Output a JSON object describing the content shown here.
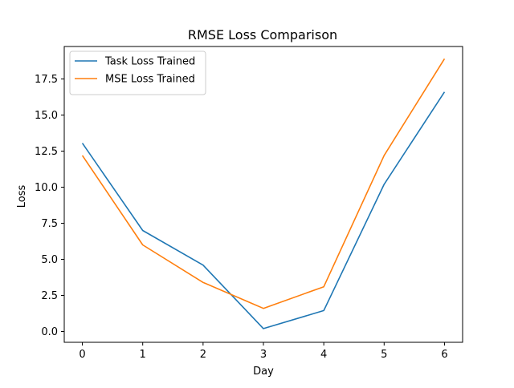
{
  "chart_data": {
    "type": "line",
    "title": "RMSE Loss Comparison",
    "xlabel": "Day",
    "ylabel": "Loss",
    "x": [
      0,
      1,
      2,
      3,
      4,
      5,
      6
    ],
    "xlim": [
      -0.3,
      6.3
    ],
    "ylim": [
      -0.75,
      19.75
    ],
    "xticks": [
      0,
      1,
      2,
      3,
      4,
      5,
      6
    ],
    "yticks": [
      0.0,
      2.5,
      5.0,
      7.5,
      10.0,
      12.5,
      15.0,
      17.5
    ],
    "xtick_labels": [
      "0",
      "1",
      "2",
      "3",
      "4",
      "5",
      "6"
    ],
    "ytick_labels": [
      "0.0",
      "2.5",
      "5.0",
      "7.5",
      "10.0",
      "12.5",
      "15.0",
      "17.5"
    ],
    "grid": false,
    "legend_position": "upper left",
    "series": [
      {
        "name": "Task Loss Trained",
        "color": "#1f77b4",
        "values": [
          13.05,
          7.0,
          4.6,
          0.2,
          1.45,
          10.2,
          16.6
        ]
      },
      {
        "name": "MSE Loss Trained",
        "color": "#ff7f0e",
        "values": [
          12.2,
          6.0,
          3.4,
          1.6,
          3.1,
          12.2,
          18.9
        ]
      }
    ]
  }
}
